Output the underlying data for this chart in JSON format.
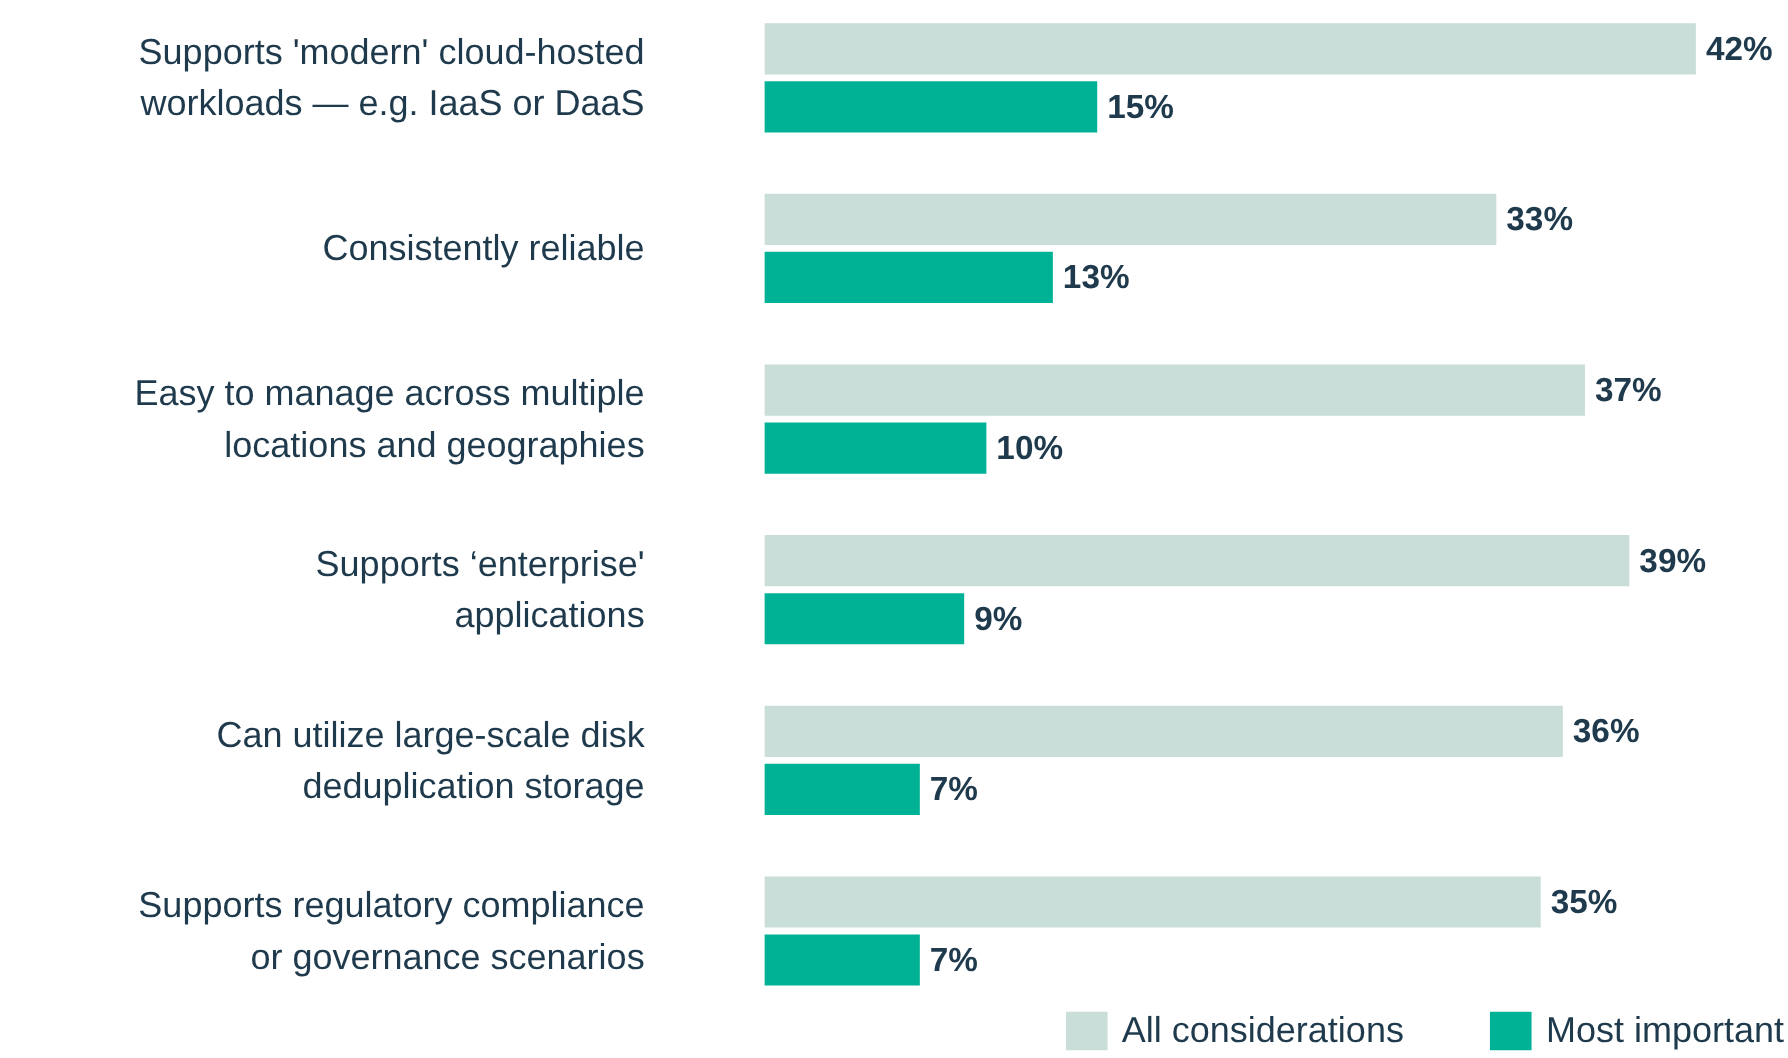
{
  "chart_data": {
    "type": "bar",
    "orientation": "horizontal",
    "categories": [
      "Supports 'modern' cloud-hosted workloads — e.g. IaaS or DaaS",
      "Consistently reliable",
      "Easy to manage across multiple locations and geographies",
      "Supports ‘enterprise' applications",
      "Can utilize large-scale disk deduplication storage",
      "Supports regulatory compliance or governance scenarios"
    ],
    "series": [
      {
        "name": "All considerations",
        "color": "#c9ddd9",
        "values": [
          42,
          33,
          37,
          39,
          36,
          35
        ],
        "value_labels": [
          "42%",
          "33%",
          "37%",
          "39%",
          "36%",
          "35%"
        ]
      },
      {
        "name": "Most important",
        "color": "#00b295",
        "values": [
          15,
          13,
          10,
          9,
          7,
          7
        ],
        "value_labels": [
          "15%",
          "13%",
          "10%",
          "9%",
          "7%",
          "7%"
        ]
      }
    ],
    "legend": "bottom",
    "grid": false
  }
}
